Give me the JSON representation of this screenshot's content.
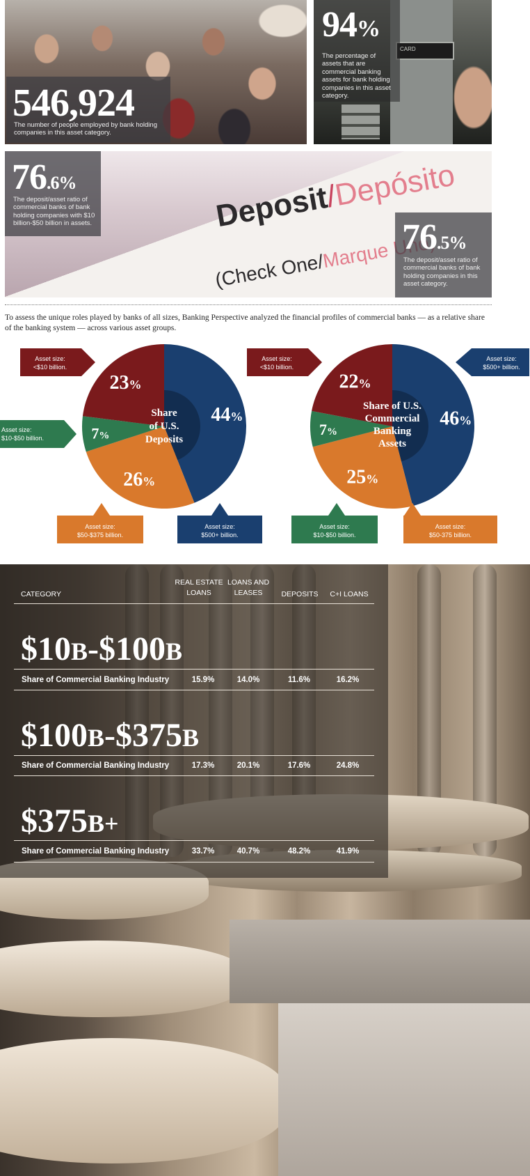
{
  "stats": {
    "employees": {
      "value": "546,924",
      "caption": "The number of people employed by bank holding companies in this asset category."
    },
    "asset_share": {
      "value": "94",
      "unit": "%",
      "caption": "The percentage of assets that are commercial banking assets for bank holding companies in this asset category."
    },
    "ratio_small": {
      "value": "76",
      "decimal": ".6%",
      "caption": "The deposit/asset ratio of commercial banks of bank holding companies with $10 billion-$50 billion in assets."
    },
    "ratio_large": {
      "value": "76",
      "decimal": ".5%",
      "caption": "The deposit/asset ratio of commercial banks of bank holding companies in this asset category."
    }
  },
  "photo_text": {
    "card": "CARD",
    "deposit": "Deposit",
    "slash": "/",
    "deposito": "Depósito",
    "check_one": "(Check One/",
    "marque": "Marque Uno)"
  },
  "intro": "To assess the unique roles played by banks of all sizes, Banking Perspective analyzed the financial profiles of commercial banks — as a relative share of the banking system — across various asset groups.",
  "colors": {
    "blue": "#1a3f6f",
    "orange": "#d9792c",
    "green": "#2e7a4f",
    "red": "#7a1a1c"
  },
  "chart_data": [
    {
      "type": "pie",
      "title": "Share of U.S. Deposits",
      "categories": [
        "Asset size: $500+ billion.",
        "Asset size: $50-$375 billion.",
        "Asset size: $10-$50 billion.",
        "Asset size: <$10 billion."
      ],
      "values": [
        44,
        26,
        7,
        23
      ],
      "colors": [
        "#1a3f6f",
        "#d9792c",
        "#2e7a4f",
        "#7a1a1c"
      ]
    },
    {
      "type": "pie",
      "title": "Share of U.S. Commercial Banking Assets",
      "categories": [
        "Asset size: $500+ billion.",
        "Asset size: $50-375 billion.",
        "Asset size: $10-$50 billion.",
        "Asset size: <$10 billion."
      ],
      "values": [
        46,
        25,
        7,
        22
      ],
      "colors": [
        "#1a3f6f",
        "#d9792c",
        "#2e7a4f",
        "#7a1a1c"
      ]
    },
    {
      "type": "table",
      "columns": [
        "CATEGORY",
        "REAL ESTATE LOANS",
        "LOANS AND LEASES",
        "DEPOSITS",
        "C+I LOANS"
      ],
      "rows": [
        {
          "category": "$10B-$100B",
          "label": "Share of Commercial Banking Industry",
          "values": [
            "15.9%",
            "14.0%",
            "11.6%",
            "16.2%"
          ]
        },
        {
          "category": "$100B-$375B",
          "label": "Share of Commercial Banking Industry",
          "values": [
            "17.3%",
            "20.1%",
            "17.6%",
            "24.8%"
          ]
        },
        {
          "category": "$375B+",
          "label": "Share of Commercial Banking Industry",
          "values": [
            "33.7%",
            "40.7%",
            "48.2%",
            "41.9%"
          ]
        }
      ]
    }
  ],
  "callouts": {
    "left": {
      "small": [
        "Asset size:",
        "<$10 billion."
      ],
      "mid": [
        "Asset size:",
        "$10-$50 billion."
      ],
      "large": [
        "Asset size:",
        "$50-$375 billion."
      ],
      "xlarge": [
        "Asset size:",
        "$500+ billion."
      ]
    },
    "right": {
      "small": [
        "Asset size:",
        "<$10 billion."
      ],
      "xlarge": [
        "Asset size:",
        "$500+ billion."
      ],
      "mid": [
        "Asset size:",
        "$10-$50 billion."
      ],
      "large": [
        "Asset size:",
        "$50-375 billion."
      ]
    }
  },
  "donut_titles": {
    "left": [
      "Share",
      "of U.S.",
      "Deposits"
    ],
    "right": [
      "Share of U.S.",
      "Commercial",
      "Banking",
      "Assets"
    ]
  },
  "table": {
    "headers": {
      "category": "CATEGORY",
      "re1": "REAL ESTATE",
      "re2": "LOANS",
      "ll1": "LOANS AND",
      "ll2": "LEASES",
      "dep": "DEPOSITS",
      "ci": "C+I LOANS"
    },
    "ranges": [
      {
        "a": "$10",
        "b": "B",
        "c": "-$100",
        "d": "B"
      },
      {
        "a": "$100",
        "b": "B",
        "c": "-$375",
        "d": "B"
      },
      {
        "a": "$375",
        "b": "B+",
        "c": "",
        "d": ""
      }
    ]
  }
}
